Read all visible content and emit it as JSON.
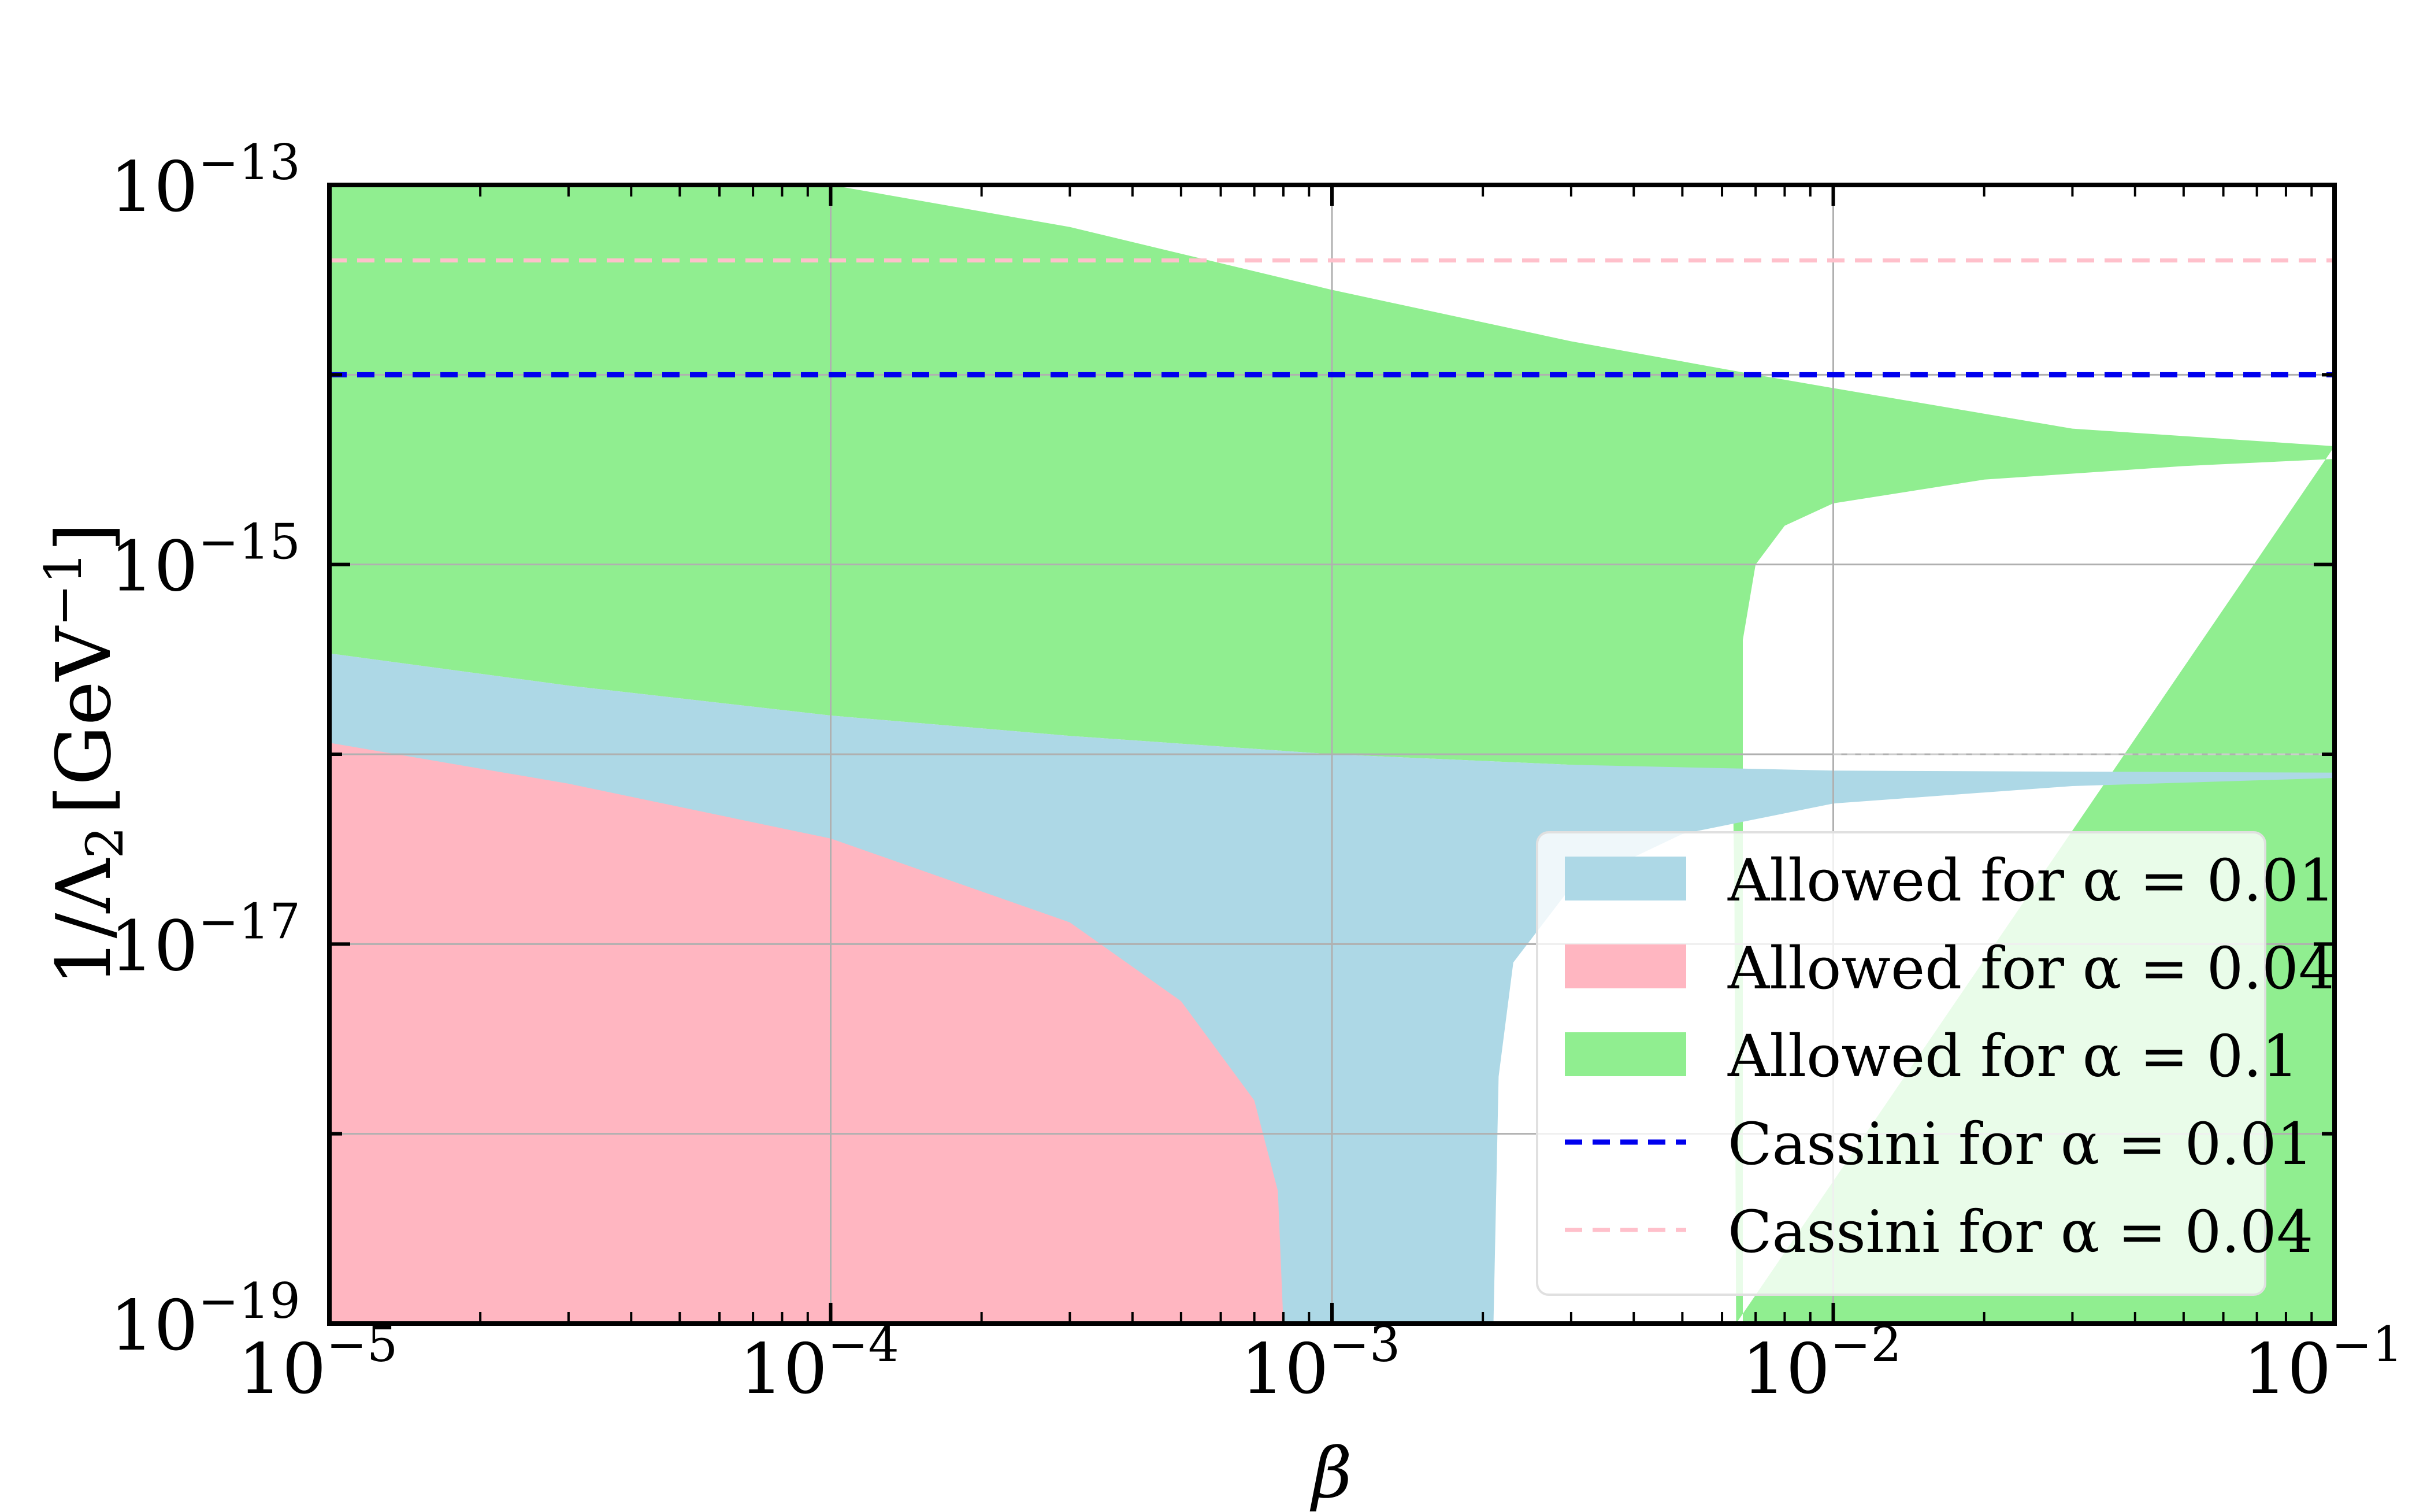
{
  "chart_data": {
    "type": "area",
    "xscale": "log",
    "yscale": "log",
    "xlim": [
      1e-05,
      0.1
    ],
    "ylim": [
      1e-19,
      1e-13
    ],
    "xlabel": "β",
    "ylabel_main": "1/Λ",
    "ylabel_sub": "2",
    "ylabel_unit": "[GeV",
    "ylabel_unit_sup": "−1",
    "ylabel_unit_close": "]",
    "grid": true,
    "legend_position": "lower-right",
    "x_ticks": [
      {
        "value": 1e-05,
        "base": "10",
        "exp": "−5"
      },
      {
        "value": 0.0001,
        "base": "10",
        "exp": "−4"
      },
      {
        "value": 0.001,
        "base": "10",
        "exp": "−3"
      },
      {
        "value": 0.01,
        "base": "10",
        "exp": "−2"
      },
      {
        "value": 0.1,
        "base": "10",
        "exp": "−1"
      }
    ],
    "y_ticks": [
      {
        "value": 1e-19,
        "base": "10",
        "exp": "−19"
      },
      {
        "value": 1e-17,
        "base": "10",
        "exp": "−17"
      },
      {
        "value": 1e-15,
        "base": "10",
        "exp": "−15"
      },
      {
        "value": 1e-13,
        "base": "10",
        "exp": "−13"
      }
    ],
    "series": [
      {
        "name": "Allowed for α = 0.01",
        "kind": "fill",
        "color": "#add8e6",
        "upper": [
          [
            1e-05,
            3.4e-16
          ],
          [
            3e-05,
            2.3e-16
          ],
          [
            0.0001,
            1.6e-16
          ],
          [
            0.0003,
            1.25e-16
          ],
          [
            0.001,
            1e-16
          ],
          [
            0.003,
            8.8e-17
          ],
          [
            0.01,
            8.2e-17
          ],
          [
            0.03,
            8.1e-17
          ],
          [
            0.1,
            8e-17
          ]
        ],
        "lower": [
          [
            1e-05,
            1e-19
          ],
          [
            0.0008,
            1e-19
          ],
          [
            0.0021,
            1e-19
          ],
          [
            0.00215,
            2e-18
          ],
          [
            0.0023,
            8e-18
          ],
          [
            0.003,
            2e-17
          ],
          [
            0.005,
            3.8e-17
          ],
          [
            0.01,
            5.5e-17
          ],
          [
            0.03,
            6.8e-17
          ],
          [
            0.1,
            7.5e-17
          ]
        ]
      },
      {
        "name": "Allowed for α = 0.04",
        "kind": "fill",
        "color": "#ffb6c1",
        "upper": [
          [
            1e-05,
            1.15e-16
          ],
          [
            3e-05,
            7e-17
          ],
          [
            0.0001,
            3.6e-17
          ],
          [
            0.0003,
            1.3e-17
          ],
          [
            0.0005,
            5e-18
          ],
          [
            0.0007,
            1.5e-18
          ],
          [
            0.00078,
            5e-19
          ],
          [
            0.0008,
            1e-19
          ]
        ],
        "lower": [
          [
            1e-05,
            1e-19
          ],
          [
            0.0008,
            1e-19
          ]
        ]
      },
      {
        "name": "Allowed for α = 0.1",
        "kind": "fill",
        "color": "#90ee90",
        "upper": [
          [
            1e-05,
            1e-13
          ],
          [
            0.0001,
            1e-13
          ],
          [
            0.0003,
            6e-14
          ],
          [
            0.001,
            2.8e-14
          ],
          [
            0.003,
            1.5e-14
          ],
          [
            0.007,
            1e-14
          ],
          [
            0.01,
            8.5e-15
          ],
          [
            0.03,
            5.2e-15
          ],
          [
            0.1,
            4.2e-15
          ]
        ],
        "lower": [
          [
            1e-05,
            3.4e-16
          ],
          [
            3e-05,
            2.3e-16
          ],
          [
            0.0001,
            1.6e-16
          ],
          [
            0.0003,
            1.25e-16
          ],
          [
            0.001,
            1e-16
          ],
          [
            0.003,
            8.8e-17
          ],
          [
            0.0063,
            8.3e-17
          ],
          [
            0.00635,
            2e-17
          ],
          [
            0.0064,
            1e-19
          ]
        ],
        "hole": [
          [
            0.0066,
            1e-19
          ],
          [
            0.0066,
            4e-16
          ],
          [
            0.007,
            1e-15
          ],
          [
            0.008,
            1.6e-15
          ],
          [
            0.01,
            2.1e-15
          ],
          [
            0.02,
            2.8e-15
          ],
          [
            0.05,
            3.3e-15
          ],
          [
            0.1,
            3.6e-15
          ],
          [
            0.1,
            1e-19
          ]
        ]
      },
      {
        "name": "Cassini for α = 0.01",
        "kind": "hline",
        "color": "#0000ee",
        "y": 1e-14
      },
      {
        "name": "Cassini for α = 0.04",
        "kind": "hline",
        "color": "#ffc0cb",
        "y": 4e-14
      }
    ],
    "minor_hlines": [
      {
        "y": 1e-16,
        "color": "#cccccc"
      }
    ]
  }
}
